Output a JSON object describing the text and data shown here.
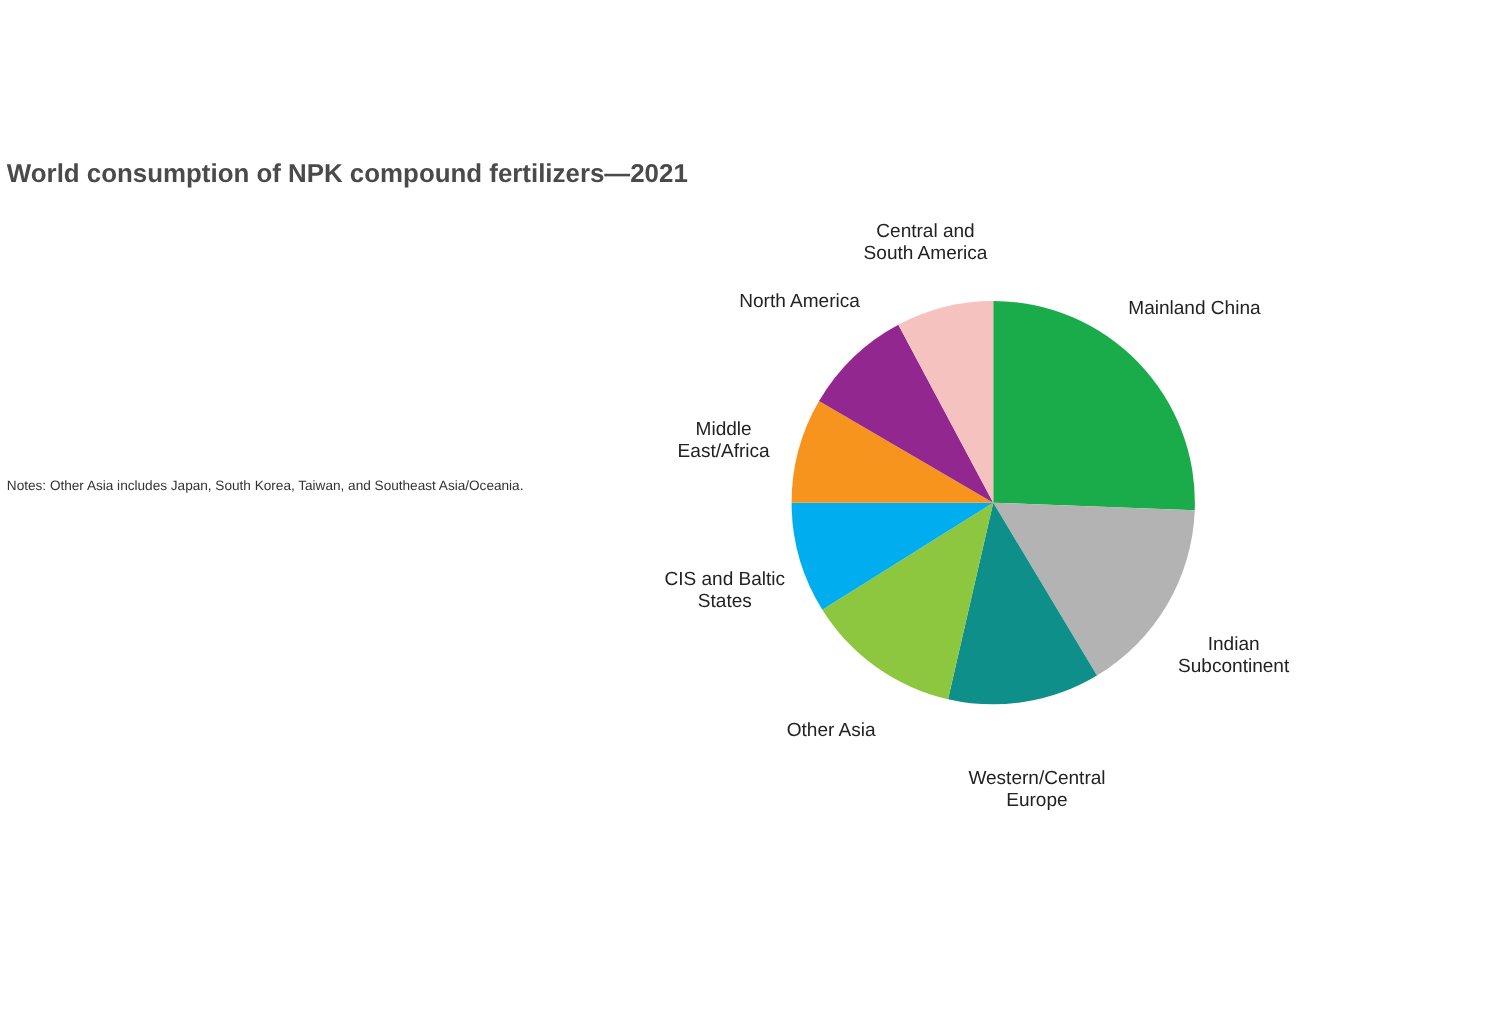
{
  "chart_data": {
    "type": "pie",
    "title": "World consumption  of NPK compound fertilizers—2021",
    "categories": [
      "Mainland China",
      "Indian Subcontinent",
      "Western/Central Europe",
      "Other Asia",
      "CIS and Baltic States",
      "Middle East/Africa",
      "North America",
      "Central and South America"
    ],
    "values": [
      25.6,
      15.8,
      12.2,
      12.5,
      8.9,
      8.4,
      8.8,
      7.8
    ],
    "colors": [
      "#1aab4a",
      "#b3b3b3",
      "#0e8f8a",
      "#8dc63f",
      "#00aeef",
      "#f7941d",
      "#92278f",
      "#f5c2c0"
    ],
    "annotations": [
      "Notes: Other Asia includes Japan, South Korea, Taiwan, and Southeast Asia/Oceania."
    ],
    "legend": false
  }
}
